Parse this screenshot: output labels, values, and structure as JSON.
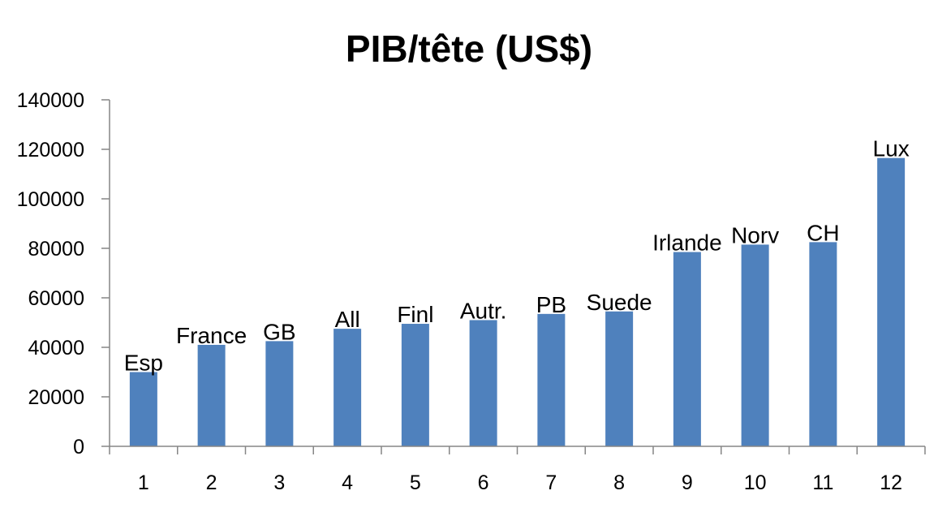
{
  "chart_data": {
    "type": "bar",
    "title": "PIB/tête (US$)",
    "xlabel": "",
    "ylabel": "",
    "categories": [
      "1",
      "2",
      "3",
      "4",
      "5",
      "6",
      "7",
      "8",
      "9",
      "10",
      "11",
      "12"
    ],
    "data_labels": [
      "Esp",
      "France",
      "GB",
      "All",
      "Finl",
      "Autr.",
      "PB",
      "Suede",
      "Irlande",
      "Norv",
      "CH",
      "Lux"
    ],
    "values": [
      30000,
      41000,
      42500,
      47500,
      49500,
      51000,
      53500,
      54500,
      78500,
      81500,
      82500,
      116500
    ],
    "ylim": [
      0,
      140000
    ],
    "yticks": [
      "0",
      "20000",
      "40000",
      "60000",
      "80000",
      "100000",
      "120000",
      "140000"
    ],
    "grid": false,
    "legend": "none",
    "bar_color": "#4F81BD",
    "axis_color": "#868686"
  }
}
